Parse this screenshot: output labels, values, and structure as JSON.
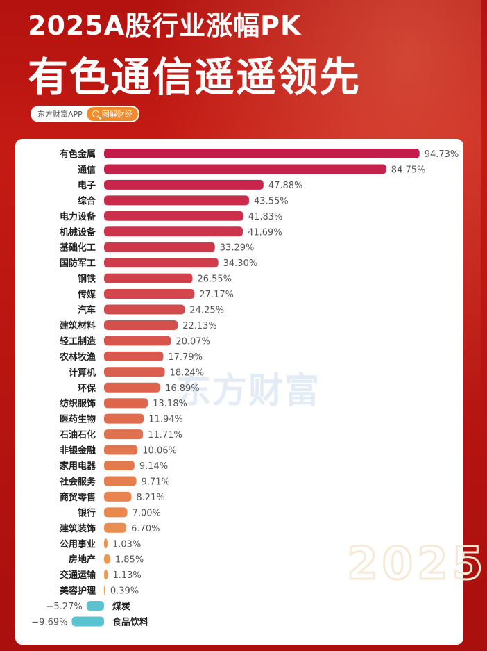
{
  "header": {
    "title_line1": "2025A股行业涨幅PK",
    "title_line2": "有色通信遥遥领先",
    "source_name": "东方财富APP",
    "source_tag": "图解财经"
  },
  "watermark": {
    "text": "东方财富",
    "year": "2025"
  },
  "chart_data": {
    "type": "bar",
    "orientation": "horizontal",
    "title": "2025A股行业涨幅PK",
    "categories": [
      "有色金属",
      "通信",
      "电子",
      "综合",
      "电力设备",
      "机械设备",
      "基础化工",
      "国防军工",
      "钢铁",
      "传媒",
      "汽车",
      "建筑材料",
      "轻工制造",
      "农林牧渔",
      "计算机",
      "环保",
      "纺织服饰",
      "医药生物",
      "石油石化",
      "非银金融",
      "家用电器",
      "社会服务",
      "商贸零售",
      "银行",
      "建筑装饰",
      "公用事业",
      "房地产",
      "交通运输",
      "美容护理",
      "煤炭",
      "食品饮料"
    ],
    "values": [
      94.73,
      84.75,
      47.88,
      43.55,
      41.83,
      41.69,
      33.29,
      34.3,
      26.55,
      27.17,
      24.25,
      22.13,
      20.07,
      17.79,
      18.24,
      16.89,
      13.18,
      11.94,
      11.71,
      10.06,
      9.14,
      9.71,
      8.21,
      7.0,
      6.7,
      1.03,
      1.85,
      1.13,
      0.39,
      -5.27,
      -9.69
    ],
    "labels": [
      "94.73%",
      "84.75%",
      "47.88%",
      "43.55%",
      "41.83%",
      "41.69%",
      "33.29%",
      "34.30%",
      "26.55%",
      "27.17%",
      "24.25%",
      "22.13%",
      "20.07%",
      "17.79%",
      "18.24%",
      "16.89%",
      "13.18%",
      "11.94%",
      "11.71%",
      "10.06%",
      "9.14%",
      "9.71%",
      "8.21%",
      "7.00%",
      "6.70%",
      "1.03%",
      "1.85%",
      "1.13%",
      "0.39%",
      "−5.27%",
      "−9.69%"
    ],
    "unit": "%",
    "colors": {
      "high": "#c41c4a",
      "low": "#f0a050",
      "negative": "#5cc2cf"
    }
  }
}
